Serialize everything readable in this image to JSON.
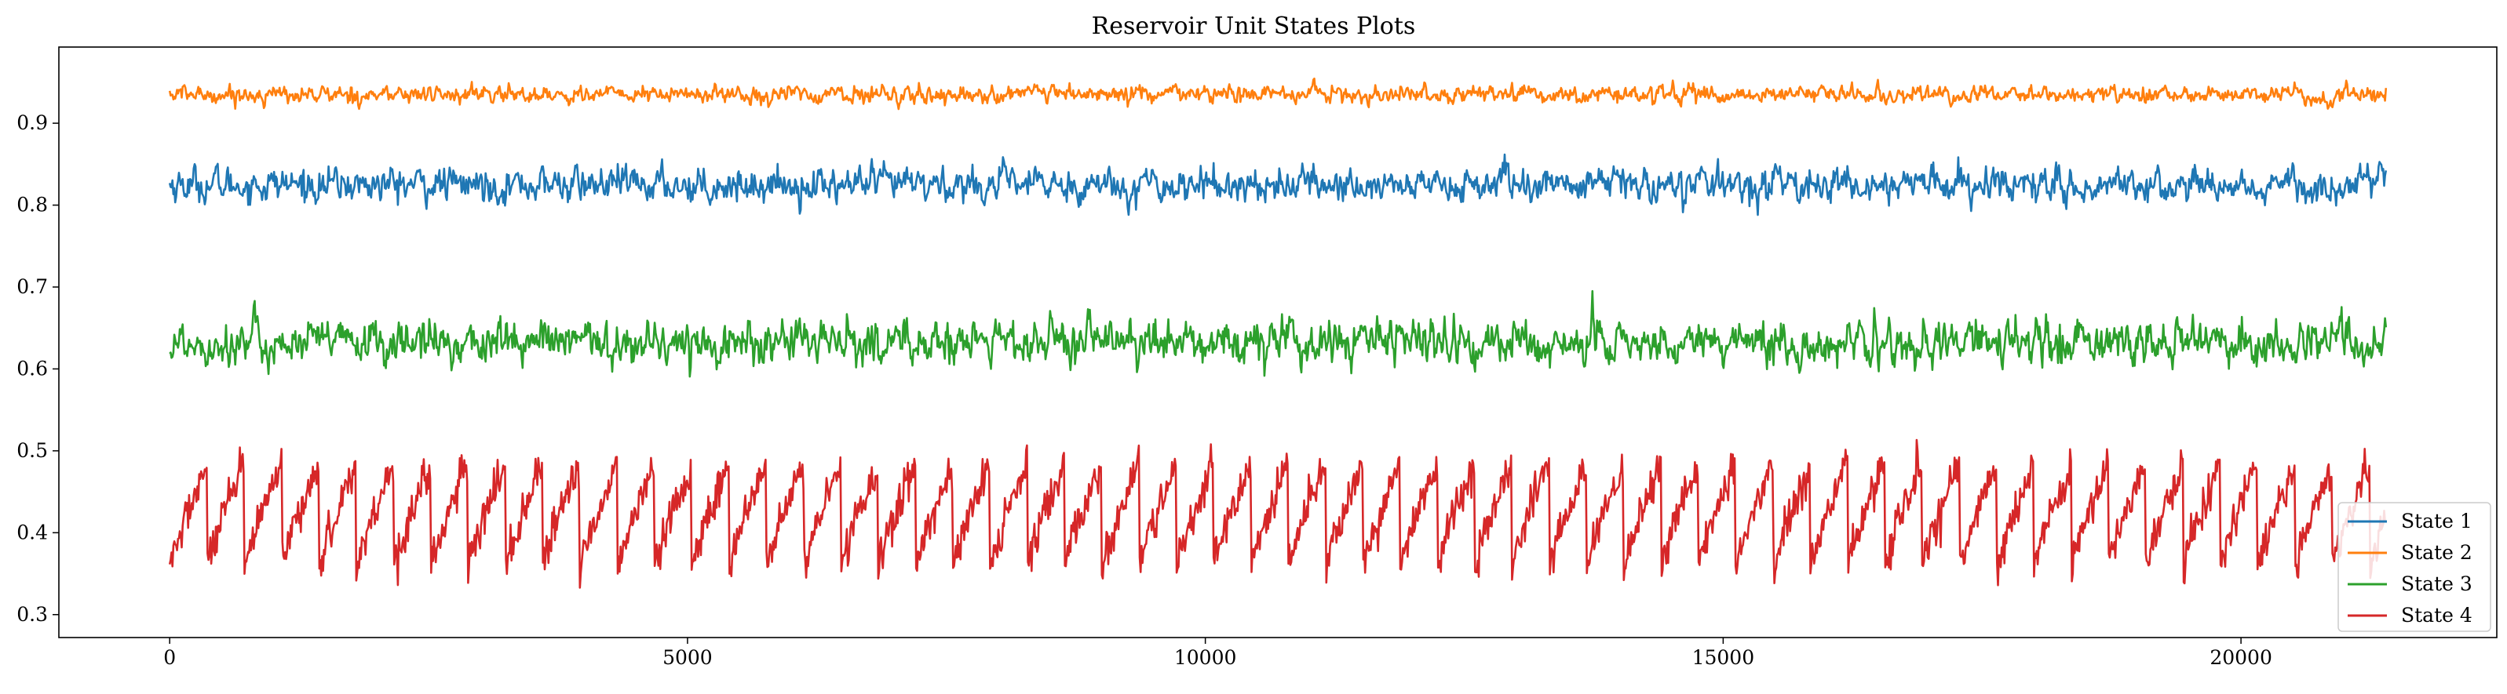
{
  "chart_data": {
    "type": "line",
    "title": "Reservoir Unit States Plots",
    "xlabel": "",
    "ylabel": "",
    "xlim": [
      -1070,
      22470
    ],
    "ylim": [
      0.272,
      0.993
    ],
    "x_ticks": [
      0,
      5000,
      10000,
      15000,
      20000
    ],
    "x_tick_labels": [
      "0",
      "5000",
      "10000",
      "15000",
      "20000"
    ],
    "y_ticks": [
      0.3,
      0.4,
      0.5,
      0.6,
      0.7,
      0.8,
      0.9
    ],
    "y_tick_labels": [
      "0.3",
      "0.4",
      "0.5",
      "0.6",
      "0.7",
      "0.8",
      "0.9"
    ],
    "grid": false,
    "legend_position": "lower-right",
    "n_points": 21400,
    "x_range": [
      0,
      21400
    ],
    "series": [
      {
        "name": "State 1",
        "color": "#1f77b4",
        "mean": 0.825,
        "y_range": [
          0.775,
          0.885
        ]
      },
      {
        "name": "State 2",
        "color": "#ff7f0e",
        "mean": 0.935,
        "y_range": [
          0.905,
          0.96
        ]
      },
      {
        "name": "State 3",
        "color": "#2ca02c",
        "mean": 0.632,
        "y_range": [
          0.553,
          0.695
        ]
      },
      {
        "name": "State 4",
        "color": "#d62728",
        "y_range": [
          0.305,
          0.532
        ],
        "sawtooth_cycle": 360,
        "sawtooth_low": 0.355,
        "sawtooth_high": 0.47
      }
    ]
  }
}
